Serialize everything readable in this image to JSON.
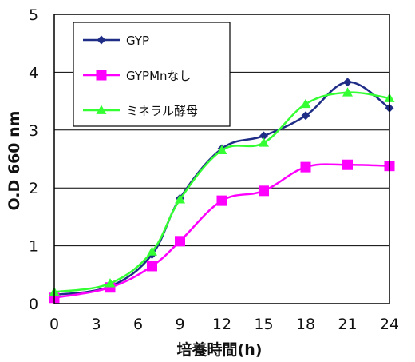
{
  "chart_data": {
    "type": "line",
    "xlabel": "培養時間(h)",
    "ylabel": "O.D 660 nm",
    "xlim": [
      0,
      24
    ],
    "ylim": [
      0,
      5
    ],
    "xticks": [
      "0",
      "3",
      "6",
      "9",
      "12",
      "15",
      "18",
      "21",
      "24"
    ],
    "yticks": [
      "0",
      "1",
      "2",
      "3",
      "4",
      "5"
    ],
    "grid": "horizontal",
    "legend": "top-left",
    "series": [
      {
        "name": "GYP",
        "color": "#1f2d86",
        "marker": "diamond",
        "x": [
          0,
          4,
          7,
          9,
          12,
          15,
          18,
          21,
          24
        ],
        "y": [
          0.15,
          0.3,
          0.85,
          1.82,
          2.68,
          2.9,
          3.25,
          3.83,
          3.38
        ]
      },
      {
        "name": "GYPMnなし",
        "color": "#ff00ff",
        "marker": "square",
        "x": [
          0,
          4,
          7,
          9,
          12,
          15,
          18,
          21,
          24
        ],
        "y": [
          0.1,
          0.28,
          0.65,
          1.08,
          1.78,
          1.95,
          2.36,
          2.4,
          2.38
        ]
      },
      {
        "name": "ミネラル酵母",
        "color": "#33ff33",
        "marker": "triangle",
        "x": [
          0,
          4,
          7,
          9,
          12,
          15,
          18,
          21,
          24
        ],
        "y": [
          0.2,
          0.35,
          0.9,
          1.8,
          2.65,
          2.78,
          3.45,
          3.65,
          3.55
        ]
      }
    ]
  }
}
